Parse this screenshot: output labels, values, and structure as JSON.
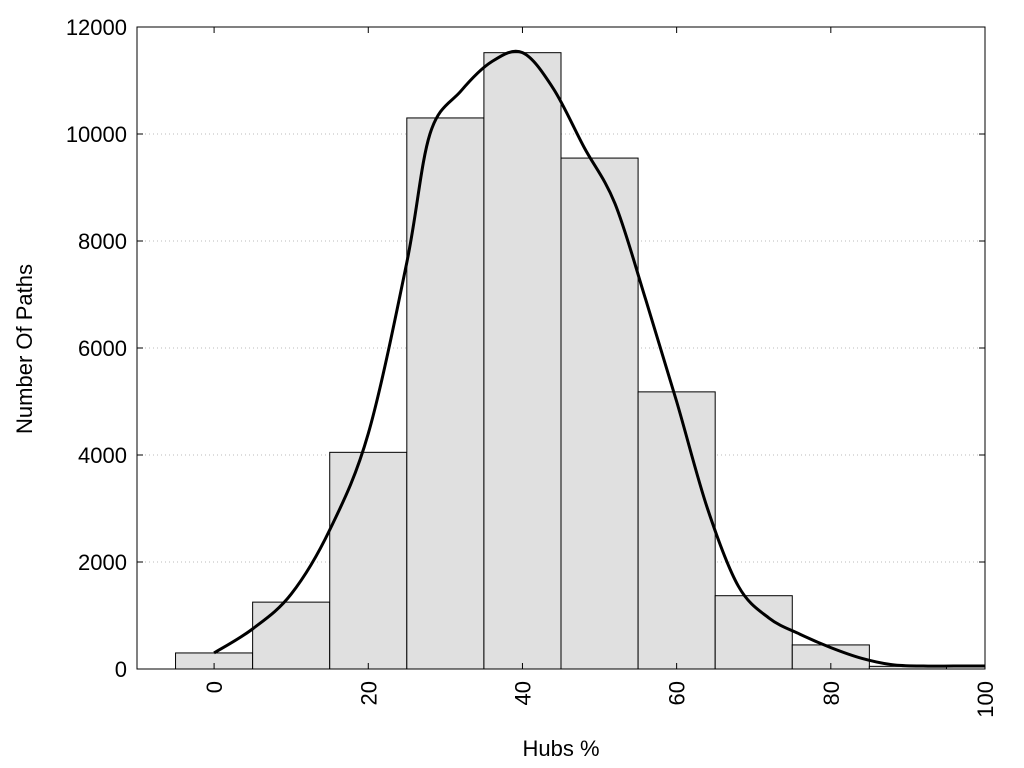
{
  "chart_data": {
    "type": "bar",
    "title": "",
    "xlabel": "Hubs %",
    "ylabel": "Number Of Paths",
    "xlim": [
      -10,
      100
    ],
    "ylim": [
      0,
      12000
    ],
    "x_ticks": [
      0,
      20,
      40,
      60,
      80,
      100
    ],
    "y_ticks": [
      0,
      2000,
      4000,
      6000,
      8000,
      10000,
      12000
    ],
    "grid": "horizontal dotted",
    "bin_width": 10,
    "bins": [
      {
        "center": 0,
        "value": 300
      },
      {
        "center": 10,
        "value": 1250
      },
      {
        "center": 20,
        "value": 4050
      },
      {
        "center": 30,
        "value": 10300
      },
      {
        "center": 40,
        "value": 11520
      },
      {
        "center": 50,
        "value": 9550
      },
      {
        "center": 60,
        "value": 5180
      },
      {
        "center": 70,
        "value": 1370
      },
      {
        "center": 80,
        "value": 450
      },
      {
        "center": 90,
        "value": 50
      }
    ],
    "curve": {
      "x": [
        0,
        5,
        10,
        15,
        20,
        25,
        28,
        32,
        36,
        40,
        44,
        48,
        52,
        56,
        60,
        64,
        68,
        72,
        76,
        80,
        84,
        88,
        92,
        96,
        100
      ],
      "y": [
        300,
        750,
        1400,
        2600,
        4400,
        7600,
        10000,
        10800,
        11350,
        11520,
        10850,
        9750,
        8700,
        6900,
        5000,
        3000,
        1550,
        950,
        650,
        400,
        200,
        80,
        55,
        55,
        55
      ]
    },
    "bar_fill": "#e0e0e0",
    "bar_stroke": "#000000",
    "curve_color": "#000000"
  }
}
